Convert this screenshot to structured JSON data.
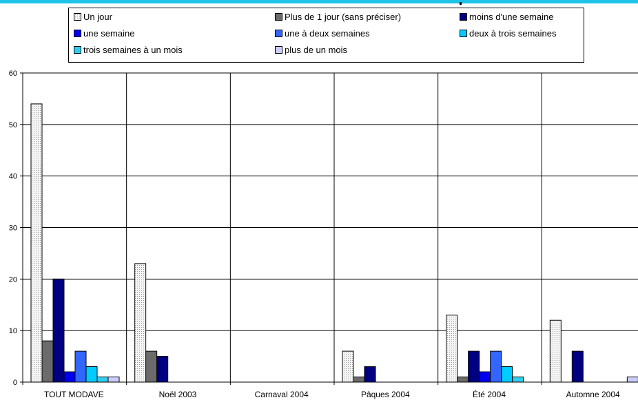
{
  "chart_data": {
    "type": "bar",
    "title": "",
    "xlabel": "",
    "ylabel": "",
    "ylim": [
      0,
      60
    ],
    "yticks": [
      0,
      10,
      20,
      30,
      40,
      50,
      60
    ],
    "grid": true,
    "legend_position": "top",
    "categories": [
      "TOUT MODAVE",
      "Noël 2003",
      "Carnaval 2004",
      "Pâques 2004",
      "Été 2004",
      "Automne 2004"
    ],
    "series": [
      {
        "name": "Un jour",
        "color": "#f2f2f2",
        "pattern": "dotted",
        "values": [
          54,
          23,
          0,
          6,
          13,
          12
        ]
      },
      {
        "name": "Plus de 1 jour (sans préciser)",
        "color": "#6b6b6b",
        "values": [
          8,
          6,
          0,
          1,
          1,
          0
        ]
      },
      {
        "name": "moins d'une semaine",
        "color": "#000080",
        "values": [
          20,
          5,
          0,
          3,
          6,
          6
        ]
      },
      {
        "name": "une semaine",
        "color": "#0000ee",
        "values": [
          2,
          0,
          0,
          0,
          2,
          0
        ]
      },
      {
        "name": "une à deux semaines",
        "color": "#3366ff",
        "values": [
          6,
          0,
          0,
          0,
          6,
          0
        ]
      },
      {
        "name": "deux à trois semaines",
        "color": "#00ccff",
        "values": [
          3,
          0,
          0,
          0,
          3,
          0
        ]
      },
      {
        "name": "trois semaines à un mois",
        "color": "#33ccee",
        "values": [
          1,
          0,
          0,
          0,
          1,
          0
        ]
      },
      {
        "name": "plus de un mois",
        "color": "#ccccff",
        "values": [
          1,
          0,
          0,
          0,
          0,
          1
        ]
      }
    ]
  }
}
